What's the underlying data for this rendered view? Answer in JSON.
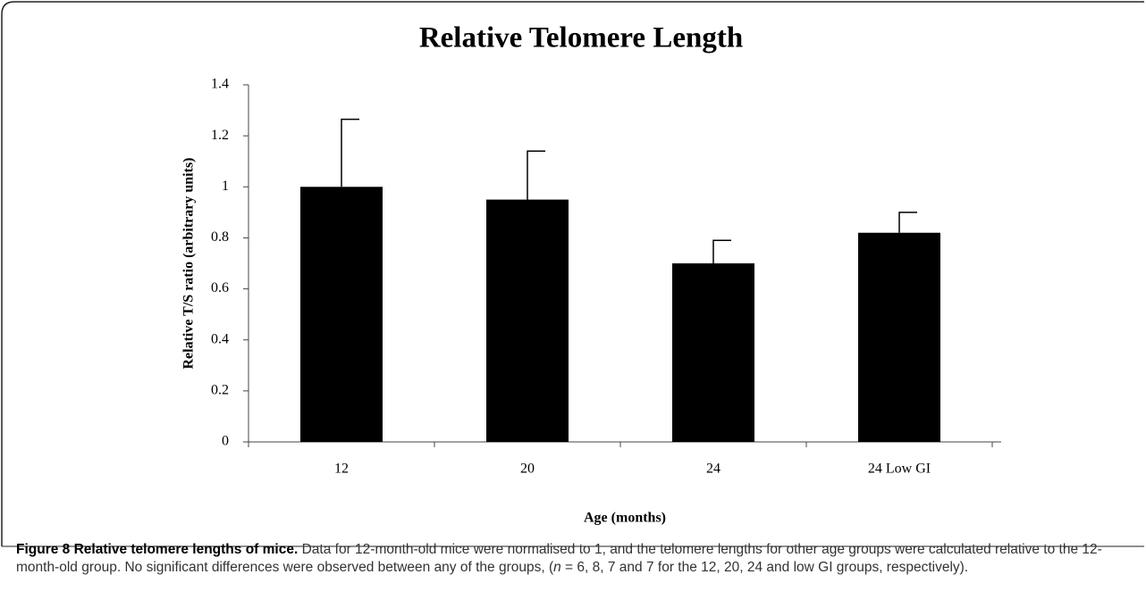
{
  "chart_data": {
    "type": "bar",
    "title": "Relative Telomere Length",
    "x_label": "Age (months)",
    "y_label": "Relative T/S ratio (arbitrary units)",
    "categories": [
      "12",
      "20",
      "24",
      "24 Low GI"
    ],
    "values": [
      1,
      0.95,
      0.7,
      0.82
    ],
    "errors": [
      0.265,
      0.19,
      0.09,
      0.08
    ],
    "color": "#000000",
    "ylim": [
      0,
      1.4
    ],
    "yticks": [
      0,
      0.2,
      0.4,
      0.6,
      0.8,
      1,
      1.2,
      1.4
    ],
    "grid": false
  },
  "caption": {
    "label": "Figure 8",
    "title": "Relative telomere lengths of mice.",
    "text_1": "Data for 12-month-old mice were normalised to 1, and the telomere lengths for other age groups were calculated relative to the 12-month-old group. No significant differences were observed between any of the groups, (",
    "italic": "n",
    "text_2": " = 6, 8, 7 and 7 for the 12, 20, 24 and low GI groups, respectively)."
  }
}
